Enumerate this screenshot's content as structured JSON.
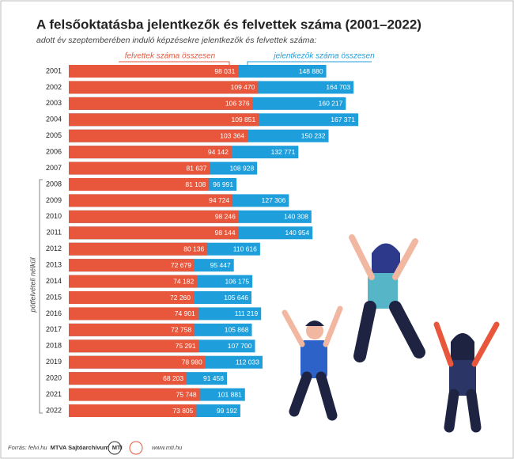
{
  "chart_data": {
    "type": "bar",
    "orientation": "horizontal",
    "title": "A felsőoktatásba jelentkezők és felvettek száma (2001–2022)",
    "subtitle": "adott év szeptemberében induló képzésekre jelentkezők és felvettek száma:",
    "categories": [
      "2001",
      "2002",
      "2003",
      "2004",
      "2005",
      "2006",
      "2007",
      "2008",
      "2009",
      "2010",
      "2011",
      "2012",
      "2013",
      "2014",
      "2015",
      "2016",
      "2017",
      "2018",
      "2019",
      "2020",
      "2021",
      "2022"
    ],
    "series": [
      {
        "name": "felvettek száma összesen",
        "color": "#e8573c",
        "values": [
          98031,
          109470,
          106376,
          109851,
          103364,
          94142,
          81637,
          81108,
          94724,
          98246,
          98144,
          80136,
          72679,
          74182,
          72260,
          74901,
          72758,
          75291,
          78980,
          68203,
          75748,
          73805
        ],
        "value_labels": [
          "98 031",
          "109 470",
          "106 376",
          "109 851",
          "103 364",
          "94 142",
          "81 637",
          "81 108",
          "94 724",
          "98 246",
          "98 144",
          "80 136",
          "72 679",
          "74 182",
          "72 260",
          "74 901",
          "72 758",
          "75 291",
          "78 980",
          "68 203",
          "75 748",
          "73 805"
        ]
      },
      {
        "name": "jelentkezők száma összesen",
        "color": "#1e9fdc",
        "values": [
          148880,
          164703,
          160217,
          167371,
          150232,
          132771,
          108928,
          96991,
          127306,
          140308,
          140954,
          110616,
          95447,
          106175,
          105646,
          111219,
          105868,
          107700,
          112033,
          91458,
          101881,
          99192
        ],
        "value_labels": [
          "148 880",
          "164 703",
          "160 217",
          "167 371",
          "150 232",
          "132 771",
          "108 928",
          "96 991",
          "127 306",
          "140 308",
          "140 954",
          "110 616",
          "95 447",
          "106 175",
          "105 646",
          "111 219",
          "105 868",
          "107 700",
          "112 033",
          "91 458",
          "101 881",
          "99 192"
        ]
      }
    ],
    "bracket_label": "pótfelvételi nélkül",
    "source": "Forrás: felvi.hu",
    "credit_1": "MTVA Sajtóarchívum",
    "credit_2": "MTI",
    "website": "www.mti.hu"
  }
}
